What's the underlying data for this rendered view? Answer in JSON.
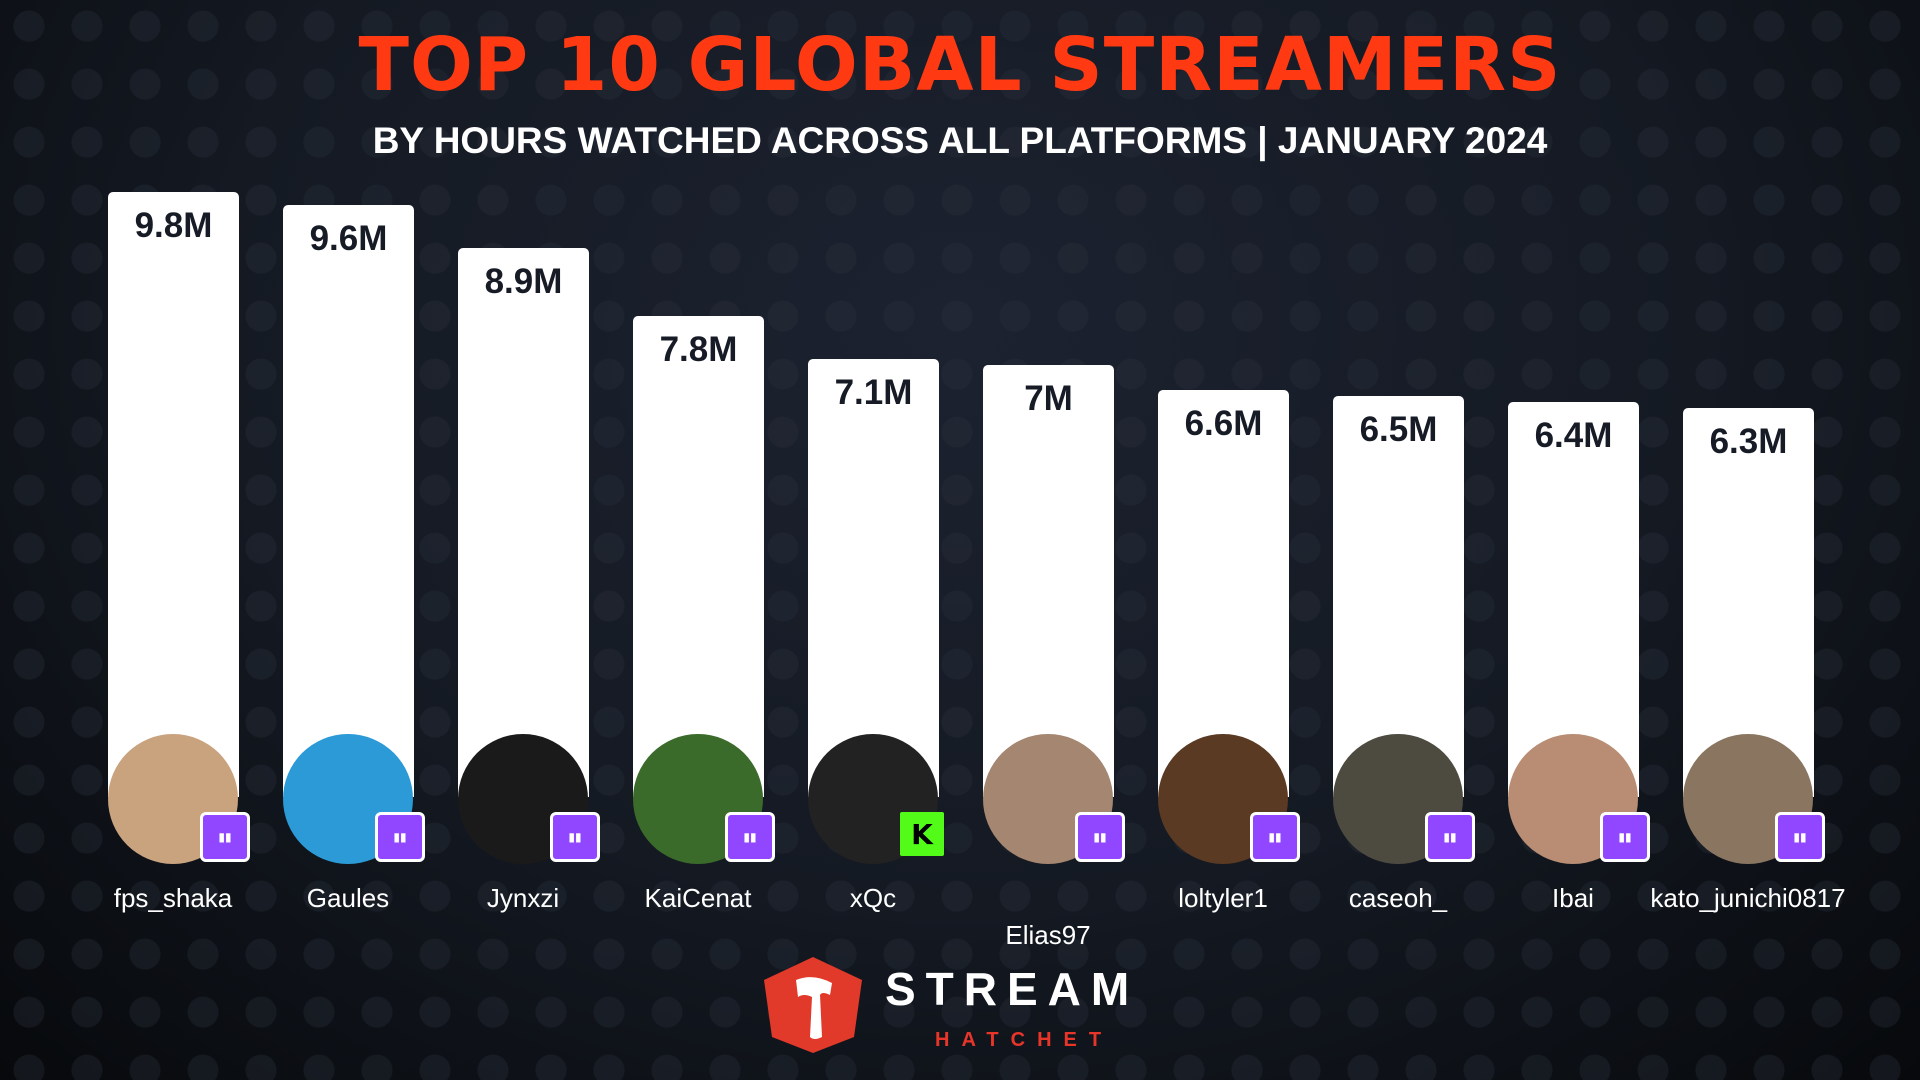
{
  "chart_data": {
    "type": "bar",
    "title": "TOP 10 GLOBAL STREAMERS",
    "subtitle": "BY HOURS WATCHED ACROSS ALL PLATFORMS | JANUARY 2024",
    "categories": [
      "fps_shaka",
      "Gaules",
      "Jynxzi",
      "KaiCenat",
      "xQc",
      "Elias97",
      "loltyler1",
      "caseoh_",
      "Ibai",
      "kato_junichi0817"
    ],
    "values": [
      9.8,
      9.6,
      8.9,
      7.8,
      7.1,
      7.0,
      6.6,
      6.5,
      6.4,
      6.3
    ],
    "value_labels": [
      "9.8M",
      "9.6M",
      "8.9M",
      "7.8M",
      "7.1M",
      "7M",
      "6.6M",
      "6.5M",
      "6.4M",
      "6.3M"
    ],
    "platforms": [
      "twitch",
      "twitch",
      "twitch",
      "twitch",
      "kick",
      "twitch",
      "twitch",
      "twitch",
      "twitch",
      "twitch"
    ],
    "unit": "hours watched (millions)",
    "ylim": [
      0,
      10
    ],
    "grid": false
  },
  "colors": {
    "title": "#ff3a12",
    "bar": "#ffffff",
    "twitch": "#9146ff",
    "kick": "#53fc18",
    "brand": "#e8352a"
  },
  "avatar_colors": [
    "#c9a27e",
    "#2b9ad6",
    "#1a1a1a",
    "#3a6b2a",
    "#222222",
    "#a58670",
    "#5a3a22",
    "#4d4a40",
    "#b88d73",
    "#8a7560"
  ],
  "logo": {
    "word1": "STREAM",
    "word2": "HATCHET"
  }
}
